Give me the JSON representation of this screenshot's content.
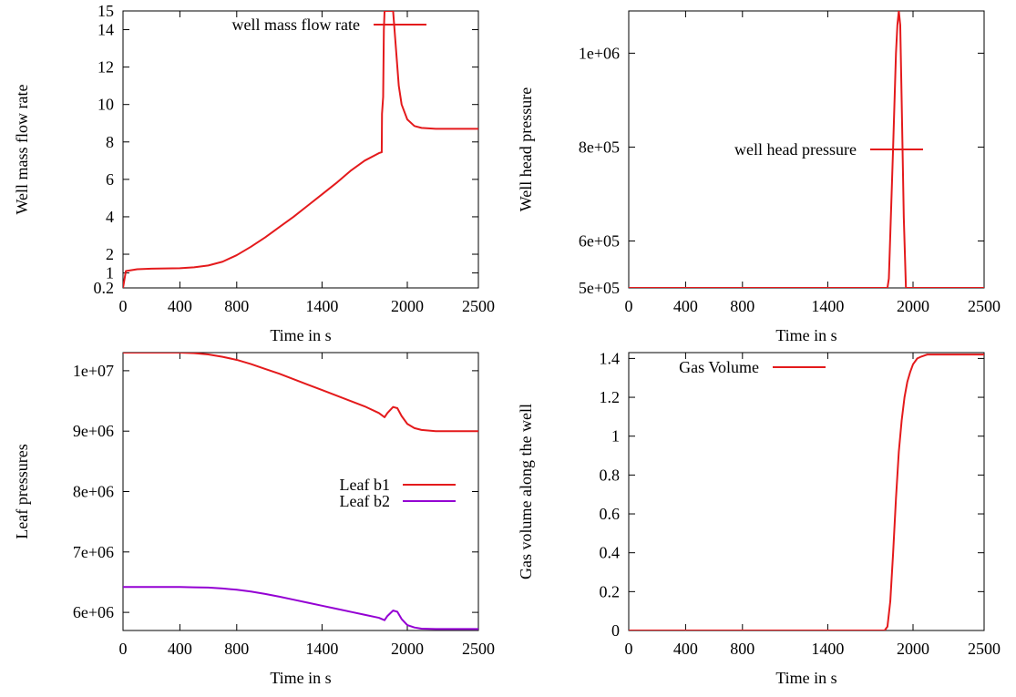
{
  "chart_data": [
    {
      "type": "line",
      "xlabel": "Time in s",
      "ylabel": "Well mass flow rate",
      "xlim": [
        0,
        2500
      ],
      "ylim": [
        0.2,
        15
      ],
      "xticks": [
        0,
        400,
        800,
        1400,
        2000,
        2500
      ],
      "yticks": [
        0.2,
        1,
        2,
        4,
        6,
        8,
        10,
        12,
        14,
        15
      ],
      "legend": "top",
      "series": [
        {
          "name": "well mass flow rate",
          "color": "#e41a1c",
          "x": [
            0,
            20,
            100,
            200,
            400,
            500,
            600,
            700,
            800,
            900,
            1000,
            1100,
            1200,
            1300,
            1400,
            1500,
            1600,
            1700,
            1800,
            1820,
            1822,
            1830,
            1835,
            1840,
            1850,
            1900,
            1920,
            1940,
            1960,
            2000,
            2050,
            2100,
            2200,
            2300,
            2500
          ],
          "y": [
            0.2,
            1.1,
            1.2,
            1.23,
            1.25,
            1.3,
            1.4,
            1.6,
            1.95,
            2.4,
            2.9,
            3.45,
            4.0,
            4.6,
            5.2,
            5.8,
            6.45,
            7.0,
            7.4,
            7.45,
            9.5,
            10.4,
            14.0,
            15,
            15,
            15,
            13.0,
            11.0,
            10.0,
            9.2,
            8.85,
            8.75,
            8.7,
            8.7,
            8.7
          ]
        }
      ]
    },
    {
      "type": "line",
      "xlabel": "Time in s",
      "ylabel": "Well head pressure",
      "xlim": [
        0,
        2500
      ],
      "ylim": [
        500000,
        1090000
      ],
      "xticks": [
        0,
        400,
        800,
        1400,
        2000,
        2500
      ],
      "yticks": [
        500000,
        600000,
        800000,
        1000000
      ],
      "ytick_labels": [
        "5e+05",
        "6e+05",
        "8e+05",
        "1e+06"
      ],
      "legend": "middle-right",
      "series": [
        {
          "name": "well head pressure",
          "color": "#e41a1c",
          "x": [
            0,
            1820,
            1830,
            1860,
            1880,
            1890,
            1900,
            1910,
            1920,
            1935,
            1950,
            2500
          ],
          "y": [
            500000,
            500000,
            520000,
            800000,
            1000000,
            1060000,
            1090000,
            1060000,
            900000,
            650000,
            500000,
            500000
          ]
        }
      ]
    },
    {
      "type": "line",
      "xlabel": "Time in s",
      "ylabel": "Leaf pressures",
      "xlim": [
        0,
        2500
      ],
      "ylim": [
        5700000,
        10300000
      ],
      "xticks": [
        0,
        400,
        800,
        1400,
        2000,
        2500
      ],
      "yticks": [
        6000000,
        7000000,
        8000000,
        9000000,
        10000000
      ],
      "ytick_labels": [
        "6e+06",
        "7e+06",
        "8e+06",
        "9e+06",
        "1e+07"
      ],
      "legend": "middle-right",
      "series": [
        {
          "name": "Leaf b1",
          "color": "#e41a1c",
          "x": [
            0,
            200,
            400,
            500,
            600,
            700,
            800,
            900,
            1000,
            1100,
            1200,
            1300,
            1400,
            1500,
            1600,
            1700,
            1800,
            1840,
            1860,
            1900,
            1930,
            1960,
            2000,
            2050,
            2100,
            2200,
            2300,
            2500
          ],
          "y": [
            10300000,
            10300000,
            10300000,
            10290000,
            10270000,
            10230000,
            10180000,
            10110000,
            10030000,
            9950000,
            9860000,
            9770000,
            9680000,
            9590000,
            9500000,
            9410000,
            9300000,
            9230000,
            9300000,
            9400000,
            9380000,
            9250000,
            9120000,
            9050000,
            9020000,
            9000000,
            9000000,
            9000000
          ]
        },
        {
          "name": "Leaf b2",
          "color": "#9400d3",
          "x": [
            0,
            200,
            400,
            500,
            600,
            700,
            800,
            900,
            1000,
            1100,
            1200,
            1300,
            1400,
            1500,
            1600,
            1700,
            1800,
            1840,
            1860,
            1900,
            1930,
            1960,
            2000,
            2050,
            2100,
            2200,
            2300,
            2500
          ],
          "y": [
            6420000,
            6420000,
            6420000,
            6415000,
            6410000,
            6395000,
            6375000,
            6345000,
            6305000,
            6260000,
            6210000,
            6160000,
            6110000,
            6060000,
            6010000,
            5960000,
            5910000,
            5870000,
            5940000,
            6030000,
            6010000,
            5890000,
            5790000,
            5750000,
            5730000,
            5725000,
            5725000,
            5725000
          ]
        }
      ]
    },
    {
      "type": "line",
      "xlabel": "Time in s",
      "ylabel": "Gas volume along the well",
      "xlim": [
        0,
        2500
      ],
      "ylim": [
        0,
        1.43
      ],
      "xticks": [
        0,
        400,
        800,
        1400,
        2000,
        2500
      ],
      "yticks": [
        0,
        0.2,
        0.4,
        0.6,
        0.8,
        1,
        1.2,
        1.4
      ],
      "legend": "top-left",
      "series": [
        {
          "name": "Gas Volume",
          "color": "#e41a1c",
          "x": [
            0,
            1800,
            1820,
            1840,
            1860,
            1880,
            1900,
            1920,
            1940,
            1960,
            1980,
            2000,
            2030,
            2060,
            2100,
            2150,
            2200,
            2300,
            2500
          ],
          "y": [
            0,
            0,
            0.02,
            0.15,
            0.4,
            0.68,
            0.92,
            1.08,
            1.2,
            1.28,
            1.33,
            1.37,
            1.4,
            1.41,
            1.42,
            1.42,
            1.42,
            1.42,
            1.42
          ]
        }
      ]
    }
  ]
}
